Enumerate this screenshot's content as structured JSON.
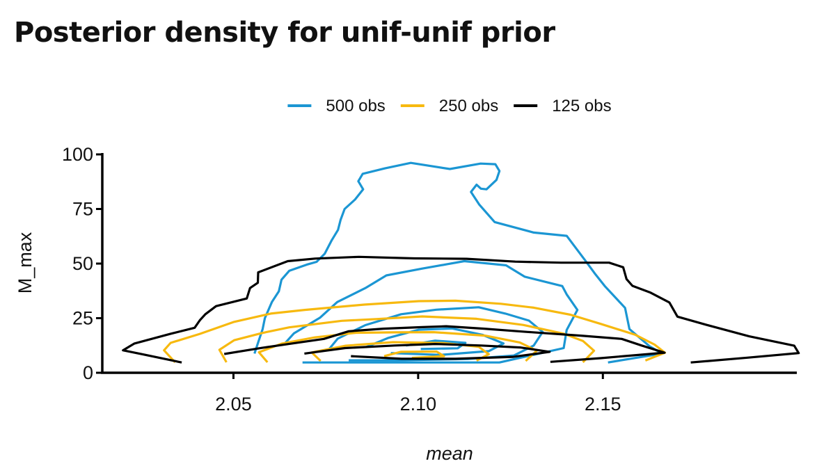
{
  "title": "Posterior density for unif-unif prior",
  "chart_data": {
    "type": "contour",
    "title": "Posterior density for unif-unif prior",
    "xlabel": "mean",
    "ylabel": "M_max",
    "xlim": [
      2.0145,
      2.2025
    ],
    "ylim": [
      0,
      100
    ],
    "x_ticks": [
      "2.05",
      "2.10",
      "2.15"
    ],
    "x_tick_values": [
      2.05,
      2.1,
      2.15
    ],
    "y_ticks": [
      "0",
      "25",
      "50",
      "75",
      "100"
    ],
    "y_tick_values": [
      0,
      25,
      50,
      75,
      100
    ],
    "legend_position": "top",
    "colors": {
      "500 obs": "#1b96d3",
      "250 obs": "#f7b90f",
      "125 obs": "#000000"
    },
    "series": [
      {
        "name": "500 obs",
        "color": "#1b96d3",
        "contours": [
          [
            [
              2.0557,
              8.8
            ],
            [
              2.0568,
              14.4
            ],
            [
              2.0579,
              20.0
            ],
            [
              2.0585,
              25.0
            ],
            [
              2.0604,
              32.4
            ],
            [
              2.0623,
              37.3
            ],
            [
              2.063,
              42.6
            ],
            [
              2.0651,
              46.7
            ],
            [
              2.0698,
              49.5
            ],
            [
              2.0725,
              50.8
            ],
            [
              2.0747,
              54.5
            ],
            [
              2.0766,
              60.7
            ],
            [
              2.0783,
              65.4
            ],
            [
              2.079,
              70.0
            ],
            [
              2.0801,
              75.0
            ],
            [
              2.0829,
              79.3
            ],
            [
              2.0851,
              84.0
            ],
            [
              2.0838,
              87.7
            ],
            [
              2.085,
              91.1
            ],
            [
              2.091,
              93.6
            ],
            [
              2.098,
              96.1
            ],
            [
              2.1086,
              93.3
            ],
            [
              2.1169,
              95.8
            ],
            [
              2.1209,
              95.5
            ],
            [
              2.122,
              92.4
            ],
            [
              2.1212,
              88.3
            ],
            [
              2.1185,
              84.0
            ],
            [
              2.117,
              84.3
            ],
            [
              2.1158,
              86.1
            ],
            [
              2.1143,
              82.8
            ],
            [
              2.1165,
              77.1
            ],
            [
              2.1207,
              69.0
            ],
            [
              2.1313,
              64.2
            ],
            [
              2.1402,
              62.7
            ],
            [
              2.1452,
              51.5
            ],
            [
              2.1478,
              45.5
            ],
            [
              2.1505,
              39.7
            ],
            [
              2.156,
              29.7
            ],
            [
              2.1572,
              20.0
            ],
            [
              2.1626,
              12.2
            ],
            [
              2.166,
              8.8
            ],
            [
              2.1514,
              4.7
            ]
          ],
          [
            [
              2.0641,
              13.8
            ],
            [
              2.0664,
              18.1
            ],
            [
              2.0734,
              25.2
            ],
            [
              2.0781,
              32.4
            ],
            [
              2.0857,
              38.8
            ],
            [
              2.0914,
              44.6
            ],
            [
              2.1011,
              47.7
            ],
            [
              2.1125,
              51.1
            ],
            [
              2.1238,
              49.2
            ],
            [
              2.1288,
              44.0
            ],
            [
              2.139,
              39.7
            ],
            [
              2.1402,
              35.9
            ],
            [
              2.1431,
              28.8
            ],
            [
              2.1402,
              19.6
            ],
            [
              2.1394,
              11.3
            ],
            [
              2.122,
              4.7
            ],
            [
              2.0928,
              4.7
            ],
            [
              2.0687,
              4.7
            ]
          ],
          [
            [
              2.0757,
              10.4
            ],
            [
              2.0782,
              15.6
            ],
            [
              2.0857,
              21.8
            ],
            [
              2.0954,
              26.8
            ],
            [
              2.1049,
              28.9
            ],
            [
              2.1164,
              30.0
            ],
            [
              2.1236,
              27.1
            ],
            [
              2.13,
              23.9
            ],
            [
              2.1337,
              18.7
            ],
            [
              2.1313,
              12.5
            ],
            [
              2.1259,
              7.9
            ],
            [
              2.1134,
              6.3
            ],
            [
              2.0939,
              5.7
            ],
            [
              2.0812,
              5.7
            ]
          ],
          [
            [
              2.0858,
              11.7
            ],
            [
              2.0918,
              15.9
            ],
            [
              2.1002,
              19.7
            ],
            [
              2.1092,
              20.3
            ],
            [
              2.1174,
              17.4
            ],
            [
              2.1231,
              13.4
            ],
            [
              2.1191,
              9.9
            ],
            [
              2.1061,
              8.2
            ],
            [
              2.0926,
              9.0
            ]
          ],
          [
            [
              2.0967,
              12.5
            ],
            [
              2.1046,
              14.7
            ],
            [
              2.1128,
              13.7
            ],
            [
              2.1107,
              11.2
            ],
            [
              2.1007,
              10.9
            ]
          ]
        ]
      },
      {
        "name": "250 obs",
        "color": "#f7b90f",
        "contours": [
          [
            [
              2.0342,
              4.8
            ],
            [
              2.0312,
              10.3
            ],
            [
              2.033,
              13.7
            ],
            [
              2.0409,
              17.8
            ],
            [
              2.0502,
              23.3
            ],
            [
              2.0601,
              27.1
            ],
            [
              2.0693,
              28.8
            ],
            [
              2.0854,
              31.2
            ],
            [
              2.1002,
              32.8
            ],
            [
              2.1101,
              33.0
            ],
            [
              2.1224,
              31.6
            ],
            [
              2.1313,
              29.8
            ],
            [
              2.1412,
              26.6
            ],
            [
              2.1494,
              22.4
            ],
            [
              2.1588,
              17.4
            ],
            [
              2.164,
              12.9
            ],
            [
              2.1668,
              9.2
            ],
            [
              2.1615,
              5.6
            ]
          ],
          [
            [
              2.0481,
              4.8
            ],
            [
              2.0462,
              10.5
            ],
            [
              2.0502,
              14.9
            ],
            [
              2.0577,
              18.2
            ],
            [
              2.0651,
              20.8
            ],
            [
              2.0793,
              23.8
            ],
            [
              2.0886,
              24.6
            ],
            [
              2.1011,
              25.8
            ],
            [
              2.1158,
              24.7
            ],
            [
              2.1284,
              21.9
            ],
            [
              2.1394,
              17.9
            ],
            [
              2.1446,
              14.6
            ],
            [
              2.1476,
              10.1
            ],
            [
              2.1446,
              4.8
            ]
          ],
          [
            [
              2.0592,
              4.8
            ],
            [
              2.0569,
              9.4
            ],
            [
              2.0632,
              13.4
            ],
            [
              2.0721,
              16.2
            ],
            [
              2.0832,
              18.3
            ],
            [
              2.0936,
              18.5
            ],
            [
              2.1042,
              18.6
            ],
            [
              2.1181,
              17.0
            ],
            [
              2.1275,
              13.9
            ],
            [
              2.1321,
              10.1
            ],
            [
              2.1291,
              5.4
            ]
          ],
          [
            [
              2.0736,
              5.4
            ],
            [
              2.0712,
              9.3
            ],
            [
              2.0804,
              12.4
            ],
            [
              2.0932,
              14.0
            ],
            [
              2.107,
              13.6
            ],
            [
              2.1164,
              11.9
            ],
            [
              2.1191,
              8.5
            ],
            [
              2.1158,
              5.6
            ]
          ],
          [
            [
              2.0908,
              7.6
            ],
            [
              2.0953,
              9.6
            ],
            [
              2.105,
              9.7
            ],
            [
              2.107,
              7.6
            ],
            [
              2.0983,
              6.8
            ]
          ]
        ]
      },
      {
        "name": "125 obs",
        "color": "#000000",
        "contours": [
          [
            [
              2.036,
              4.7
            ],
            [
              2.0253,
              8.5
            ],
            [
              2.0201,
              10.3
            ],
            [
              2.0232,
              13.4
            ],
            [
              2.0329,
              17.8
            ],
            [
              2.0395,
              20.6
            ],
            [
              2.0409,
              24.0
            ],
            [
              2.0424,
              26.8
            ],
            [
              2.0453,
              30.5
            ],
            [
              2.0536,
              34.0
            ],
            [
              2.0545,
              38.8
            ],
            [
              2.0566,
              41.2
            ],
            [
              2.0567,
              46.0
            ],
            [
              2.0647,
              51.1
            ],
            [
              2.0721,
              52.3
            ],
            [
              2.084,
              53.1
            ],
            [
              2.0989,
              52.4
            ],
            [
              2.1131,
              52.2
            ],
            [
              2.1263,
              50.9
            ],
            [
              2.1387,
              50.4
            ],
            [
              2.1517,
              50.4
            ],
            [
              2.1555,
              48.3
            ],
            [
              2.1564,
              42.9
            ],
            [
              2.158,
              39.8
            ],
            [
              2.1629,
              36.7
            ],
            [
              2.168,
              32.2
            ],
            [
              2.1702,
              25.7
            ],
            [
              2.1781,
              21.9
            ],
            [
              2.1896,
              16.7
            ],
            [
              2.2018,
              12.4
            ],
            [
              2.203,
              9.0
            ],
            [
              2.1891,
              6.9
            ],
            [
              2.1738,
              4.7
            ]
          ],
          [
            [
              2.0475,
              8.6
            ],
            [
              2.0577,
              11.4
            ],
            [
              2.065,
              13.2
            ],
            [
              2.0745,
              15.5
            ],
            [
              2.0812,
              19.0
            ],
            [
              2.0906,
              20.2
            ],
            [
              2.1011,
              20.9
            ],
            [
              2.1076,
              21.3
            ],
            [
              2.1178,
              20.2
            ],
            [
              2.1296,
              18.7
            ],
            [
              2.144,
              17.0
            ],
            [
              2.1551,
              15.5
            ],
            [
              2.1605,
              12.5
            ],
            [
              2.1667,
              9.2
            ],
            [
              2.1494,
              6.7
            ],
            [
              2.1358,
              5.0
            ]
          ],
          [
            [
              2.0692,
              8.8
            ],
            [
              2.0802,
              11.3
            ],
            [
              2.0936,
              12.5
            ],
            [
              2.1046,
              13.2
            ],
            [
              2.117,
              12.5
            ],
            [
              2.1276,
              11.6
            ],
            [
              2.1356,
              9.6
            ],
            [
              2.1258,
              7.3
            ],
            [
              2.1101,
              6.4
            ],
            [
              2.0955,
              6.4
            ],
            [
              2.0818,
              7.6
            ]
          ]
        ]
      }
    ]
  }
}
